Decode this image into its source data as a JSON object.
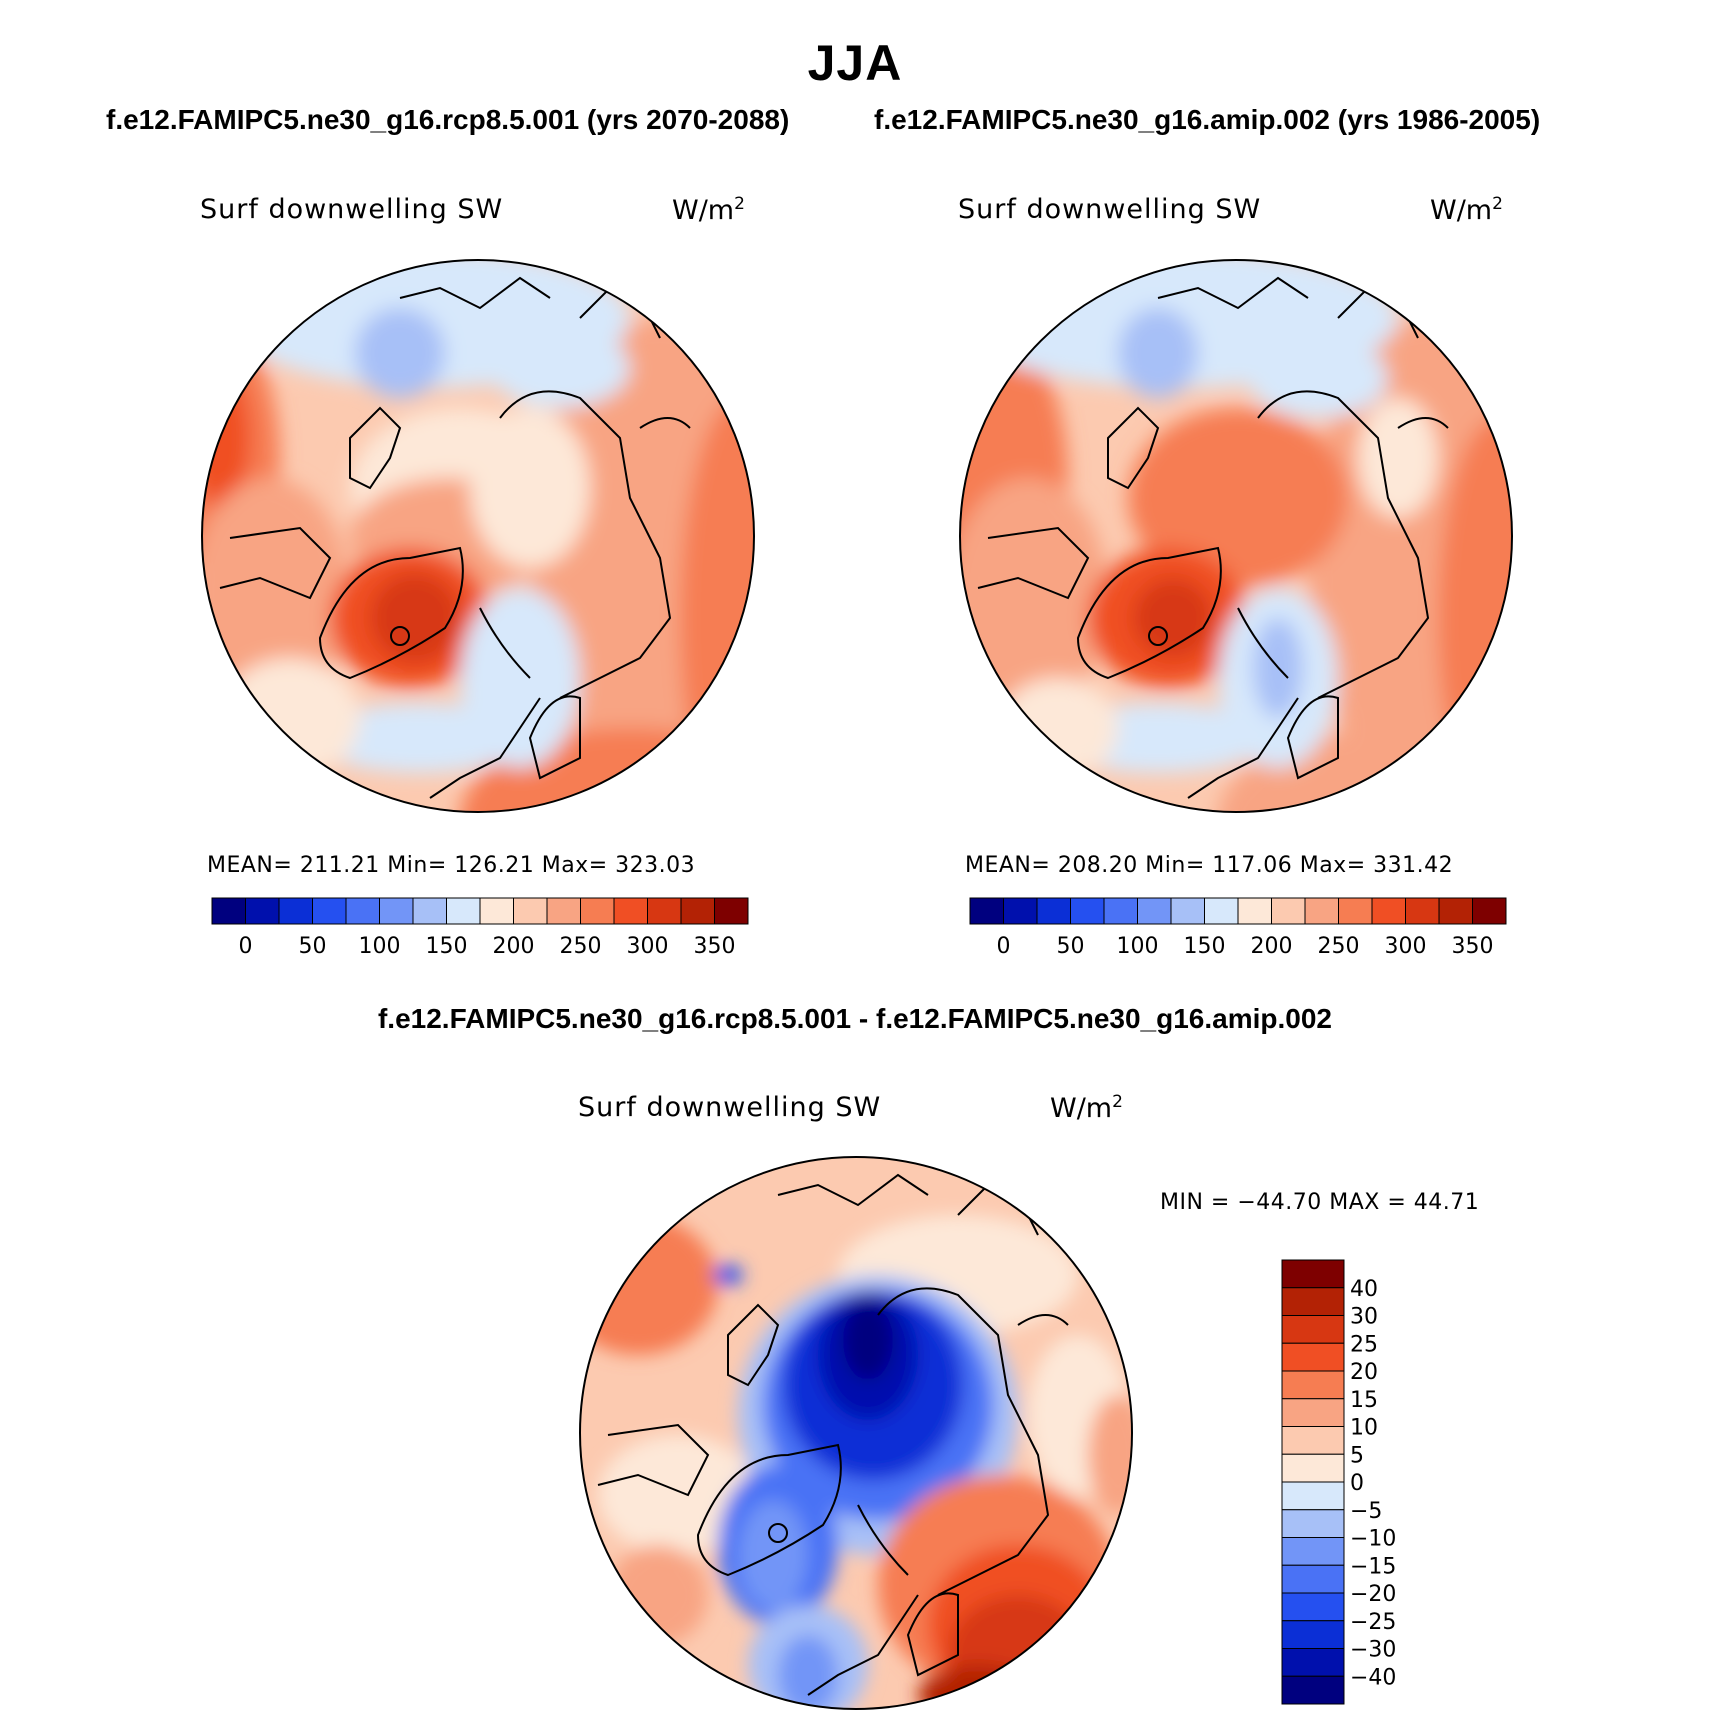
{
  "title": "JJA",
  "subtitle_left": "f.e12.FAMIPC5.ne30_g16.rcp8.5.001 (yrs 2070-2088)",
  "subtitle_right": "f.e12.FAMIPC5.ne30_g16.amip.002 (yrs 1986-2005)",
  "diff_title": "f.e12.FAMIPC5.ne30_g16.rcp8.5.001 - f.e12.FAMIPC5.ne30_g16.amip.002",
  "panels": {
    "left": {
      "variable": "Surf downwelling SW",
      "units": "W/m",
      "units_exp": "2",
      "stats": "MEAN= 211.21   Min= 126.21   Max= 323.03"
    },
    "right": {
      "variable": "Surf downwelling SW",
      "units": "W/m",
      "units_exp": "2",
      "stats": "MEAN= 208.20   Min= 117.06   Max= 331.42"
    },
    "diff": {
      "variable": "Surf downwelling SW",
      "units": "W/m",
      "units_exp": "2",
      "stats": "MIN = −44.70 MAX =  44.71"
    }
  },
  "colorbar_abs": {
    "colors": [
      "#00007f",
      "#0010ad",
      "#0b2fd6",
      "#2550f0",
      "#4a72f5",
      "#7295f7",
      "#a7c0f7",
      "#d7e8fb",
      "#fde8d8",
      "#fccab0",
      "#f8a483",
      "#f67d52",
      "#f04f24",
      "#d73712",
      "#b32205",
      "#7e0000"
    ],
    "labels": [
      "0",
      "50",
      "100",
      "150",
      "200",
      "250",
      "300",
      "350"
    ]
  },
  "colorbar_diff": {
    "colors": [
      "#7e0000",
      "#b32205",
      "#d73712",
      "#f04f24",
      "#f67d52",
      "#f8a483",
      "#fccab0",
      "#fde8d8",
      "#d7e8fb",
      "#a7c0f7",
      "#7295f7",
      "#4a72f5",
      "#2550f0",
      "#0b2fd6",
      "#0010ad",
      "#00007f"
    ],
    "labels": [
      "40",
      "30",
      "25",
      "20",
      "15",
      "10",
      "5",
      "0",
      "−5",
      "−10",
      "−15",
      "−20",
      "−25",
      "−30",
      "−40"
    ]
  },
  "chart_data": [
    {
      "type": "heatmap",
      "title": "Surf downwelling SW (rcp8.5, yrs 2070-2088)",
      "units": "W/m2",
      "mean": 211.21,
      "min": 126.21,
      "max": 323.03,
      "levels": [
        0,
        25,
        50,
        75,
        100,
        125,
        150,
        175,
        200,
        225,
        250,
        275,
        300,
        325,
        350
      ]
    },
    {
      "type": "heatmap",
      "title": "Surf downwelling SW (amip, yrs 1986-2005)",
      "units": "W/m2",
      "mean": 208.2,
      "min": 117.06,
      "max": 331.42,
      "levels": [
        0,
        25,
        50,
        75,
        100,
        125,
        150,
        175,
        200,
        225,
        250,
        275,
        300,
        325,
        350
      ]
    },
    {
      "type": "heatmap",
      "title": "Surf downwelling SW difference",
      "units": "W/m2",
      "min": -44.7,
      "max": 44.71,
      "levels": [
        -40,
        -30,
        -25,
        -20,
        -15,
        -10,
        -5,
        0,
        5,
        10,
        15,
        20,
        25,
        30,
        40
      ]
    }
  ]
}
